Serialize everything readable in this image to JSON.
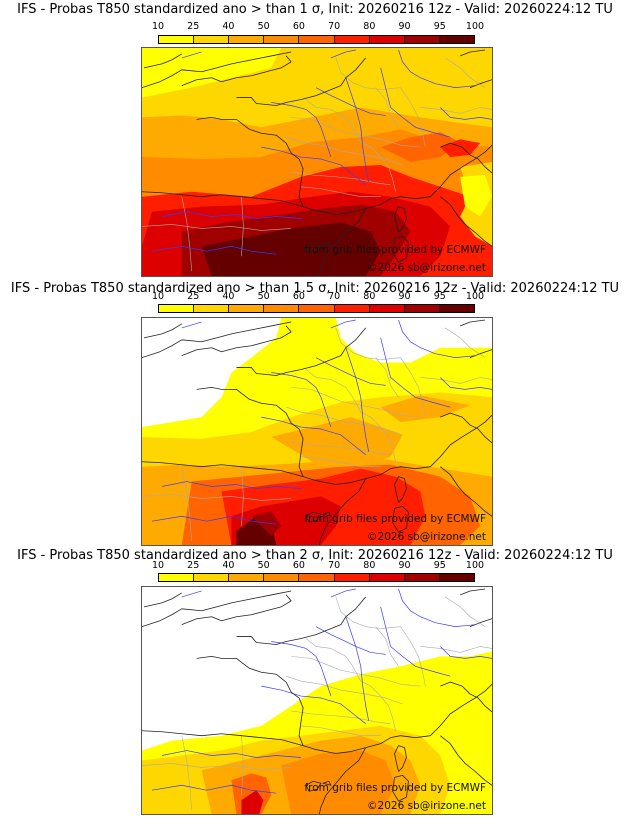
{
  "panels": [
    {
      "title": "IFS - Probas T850  standardized ano > than 1 σ, Init: 20260216 12z - Valid: 20260224:12 TU",
      "threshold_sigma": 1
    },
    {
      "title": "IFS - Probas T850  standardized ano > than 1.5 σ, Init: 20260216 12z - Valid: 20260224:12 TU",
      "threshold_sigma": 1.5
    },
    {
      "title": "IFS - Probas T850  standardized ano > than 2 σ, Init: 20260216 12z - Valid: 20260224:12 TU",
      "threshold_sigma": 2
    }
  ],
  "colorbar": {
    "ticks": [
      "10",
      "25",
      "40",
      "50",
      "60",
      "70",
      "80",
      "90",
      "95",
      "100"
    ],
    "colors": [
      "#ffff00",
      "#ffd700",
      "#ffaa00",
      "#ff8c00",
      "#ff6400",
      "#ff1e00",
      "#dc0000",
      "#a00000",
      "#640000"
    ]
  },
  "credits": {
    "source": "from grib files provided by ECMWF",
    "copyright": "©2026 sb@irizone.net"
  },
  "styles": {
    "coast_color": "#222222",
    "river_color": "#3a3aff",
    "border_color": "#aaaaaa"
  }
}
